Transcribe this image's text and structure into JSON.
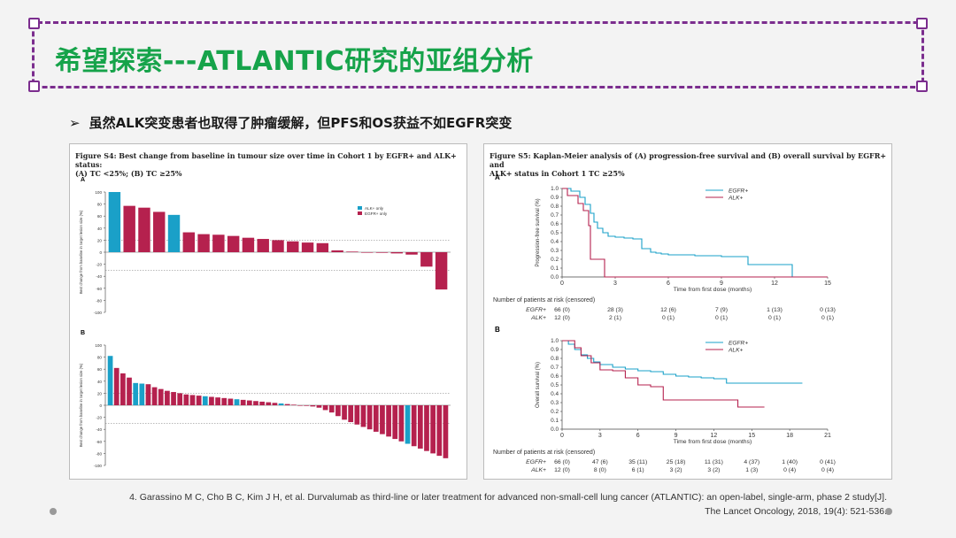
{
  "slide": {
    "title": "希望探索---ATLANTIC研究的亚组分析",
    "bullet_marker": "➢",
    "bullet_text": "虽然ALK突变患者也取得了肿瘤缓解，但PFS和OS获益不如EGFR突变",
    "reference_line1": "4. Garassino M C, Cho B C, Kim J H, et al. Durvalumab as third-line or later treatment for advanced non-small-cell lung cancer (ATLANTIC): an open-label, single-arm, phase 2 study[J].",
    "reference_line2": "The Lancet Oncology, 2018, 19(4): 521-536."
  },
  "colors": {
    "title_green": "#16a34a",
    "frame_purple": "#7b2d8e",
    "egfr": "#b5214e",
    "alk": "#1aa0c8"
  },
  "left_figure": {
    "caption_line1": "Figure S4: Best change from baseline in tumour size over time in Cohort 1 by EGFR+ and ALK+ status:",
    "caption_line2": "(A) TC <25%; (B) TC ≥25%",
    "ylabel": "Best change from baseline in target lesion size (%)"
  },
  "right_figure": {
    "caption_line1": "Figure S5: Kaplan-Meier analysis of (A) progression-free survival and (B) overall survival by EGFR+ and",
    "caption_line2": "ALK+ status in Cohort 1 TC ≥25%",
    "risk_header": "Number of patients at risk (censored)"
  },
  "chart_data": [
    {
      "type": "bar",
      "panel": "A",
      "ylabel": "Best change from baseline in target lesion size (%)",
      "ylim": [
        -100,
        100
      ],
      "yticks": [
        100,
        80,
        60,
        40,
        20,
        0,
        -20,
        -40,
        -60,
        -80,
        -100
      ],
      "reference_lines": [
        20,
        -30
      ],
      "legend": [
        "ALK+ only",
        "EGFR+ only"
      ],
      "legend_position": "top-right",
      "values": [
        100,
        77,
        74,
        67,
        62,
        33,
        30,
        29,
        27,
        24,
        22,
        20,
        18,
        16,
        15,
        3,
        1,
        0,
        -1,
        -2,
        -4,
        -24,
        -62
      ],
      "groups": [
        "ALK",
        "EGFR",
        "EGFR",
        "EGFR",
        "ALK",
        "EGFR",
        "EGFR",
        "EGFR",
        "EGFR",
        "EGFR",
        "EGFR",
        "EGFR",
        "EGFR",
        "EGFR",
        "EGFR",
        "EGFR",
        "EGFR",
        "EGFR",
        "EGFR",
        "EGFR",
        "EGFR",
        "EGFR",
        "EGFR"
      ]
    },
    {
      "type": "bar",
      "panel": "B",
      "ylabel": "Best change from baseline in target lesion size (%)",
      "ylim": [
        -100,
        100
      ],
      "yticks": [
        100,
        80,
        60,
        40,
        20,
        0,
        -20,
        -40,
        -60,
        -80,
        -100
      ],
      "reference_lines": [
        20,
        -30
      ],
      "values": [
        82,
        62,
        53,
        46,
        37,
        36,
        35,
        30,
        27,
        24,
        22,
        20,
        18,
        17,
        16,
        15,
        14,
        13,
        12,
        11,
        10,
        9,
        8,
        7,
        6,
        5,
        4,
        3,
        2,
        1,
        0,
        -1,
        -2,
        -4,
        -8,
        -12,
        -18,
        -24,
        -28,
        -32,
        -36,
        -40,
        -44,
        -48,
        -52,
        -56,
        -60,
        -64,
        -68,
        -72,
        -76,
        -80,
        -84,
        -88
      ],
      "groups": [
        "ALK",
        "EGFR",
        "EGFR",
        "EGFR",
        "ALK",
        "ALK",
        "EGFR",
        "EGFR",
        "EGFR",
        "EGFR",
        "EGFR",
        "EGFR",
        "EGFR",
        "EGFR",
        "EGFR",
        "ALK",
        "EGFR",
        "EGFR",
        "EGFR",
        "EGFR",
        "ALK",
        "EGFR",
        "EGFR",
        "EGFR",
        "EGFR",
        "EGFR",
        "EGFR",
        "ALK",
        "EGFR",
        "EGFR",
        "EGFR",
        "EGFR",
        "EGFR",
        "EGFR",
        "EGFR",
        "EGFR",
        "EGFR",
        "EGFR",
        "EGFR",
        "EGFR",
        "EGFR",
        "EGFR",
        "EGFR",
        "EGFR",
        "EGFR",
        "EGFR",
        "EGFR",
        "ALK",
        "EGFR",
        "EGFR",
        "EGFR",
        "EGFR",
        "EGFR",
        "EGFR"
      ]
    },
    {
      "type": "line",
      "panel": "A",
      "ylabel": "Progression-free survival (%)",
      "xlabel": "Time from first dose (months)",
      "xlim": [
        0,
        15
      ],
      "ylim": [
        0,
        1
      ],
      "xticks": [
        0,
        3,
        6,
        9,
        12,
        15
      ],
      "yticks": [
        1.0,
        0.9,
        0.8,
        0.7,
        0.6,
        0.5,
        0.4,
        0.3,
        0.2,
        0.1,
        0.0
      ],
      "legend_position": "top-right",
      "series": [
        {
          "name": "EGFR+",
          "x": [
            0,
            0.5,
            1,
            1.3,
            1.6,
            1.8,
            2.0,
            2.3,
            2.6,
            3.0,
            3.5,
            4.0,
            4.5,
            5.0,
            5.3,
            5.6,
            6.0,
            7.5,
            9.0,
            10.5,
            13.0,
            13.0,
            15.0
          ],
          "y": [
            1.0,
            0.97,
            0.9,
            0.82,
            0.72,
            0.62,
            0.55,
            0.5,
            0.46,
            0.45,
            0.44,
            0.43,
            0.32,
            0.28,
            0.27,
            0.26,
            0.25,
            0.24,
            0.23,
            0.14,
            0.14,
            0.0,
            0.0
          ]
        },
        {
          "name": "ALK+",
          "x": [
            0,
            0.3,
            0.9,
            1.2,
            1.5,
            1.6,
            2.0,
            2.3,
            2.4,
            3.0,
            15.0
          ],
          "y": [
            1.0,
            0.92,
            0.83,
            0.75,
            0.58,
            0.2,
            0.2,
            0.2,
            0.0,
            0.0,
            0.0
          ]
        }
      ],
      "risk_table": {
        "times": [
          0,
          3,
          6,
          9,
          12,
          15
        ],
        "rows": [
          {
            "label": "EGFR+",
            "values": [
              "66 (0)",
              "28 (3)",
              "12 (6)",
              "7 (9)",
              "1 (13)",
              "0 (13)"
            ]
          },
          {
            "label": "ALK+",
            "values": [
              "12 (0)",
              "2 (1)",
              "0 (1)",
              "0 (1)",
              "0 (1)",
              "0 (1)"
            ]
          }
        ]
      }
    },
    {
      "type": "line",
      "panel": "B",
      "ylabel": "Overall survival (%)",
      "xlabel": "Time from first dose (months)",
      "xlim": [
        0,
        21
      ],
      "ylim": [
        0,
        1
      ],
      "xticks": [
        0,
        3,
        6,
        9,
        12,
        15,
        18,
        21
      ],
      "yticks": [
        1.0,
        0.9,
        0.8,
        0.7,
        0.6,
        0.5,
        0.4,
        0.3,
        0.2,
        0.1,
        0.0
      ],
      "legend_position": "top-right",
      "series": [
        {
          "name": "EGFR+",
          "x": [
            0,
            0.5,
            1,
            1.5,
            2,
            2.5,
            3,
            4,
            5,
            6,
            7,
            8,
            9,
            10,
            11,
            12,
            13,
            14,
            15,
            16,
            17,
            18,
            19
          ],
          "y": [
            1.0,
            0.96,
            0.9,
            0.84,
            0.8,
            0.76,
            0.73,
            0.7,
            0.68,
            0.66,
            0.65,
            0.62,
            0.6,
            0.59,
            0.58,
            0.57,
            0.52,
            0.52,
            0.52,
            0.52,
            0.52,
            0.52,
            0.52
          ]
        },
        {
          "name": "ALK+",
          "x": [
            0,
            1.0,
            1.5,
            2.3,
            3.0,
            4.0,
            5.0,
            6.0,
            7.0,
            8.0,
            9.0,
            10.0,
            11.0,
            12.0,
            13.0,
            13.9,
            14.5,
            16.0
          ],
          "y": [
            1.0,
            0.92,
            0.83,
            0.75,
            0.67,
            0.66,
            0.58,
            0.5,
            0.48,
            0.33,
            0.33,
            0.33,
            0.33,
            0.33,
            0.33,
            0.25,
            0.25,
            0.25
          ]
        }
      ],
      "risk_table": {
        "times": [
          0,
          3,
          6,
          9,
          12,
          15,
          18,
          21
        ],
        "rows": [
          {
            "label": "EGFR+",
            "values": [
              "66 (0)",
              "47 (6)",
              "35 (11)",
              "25 (18)",
              "11 (31)",
              "4 (37)",
              "1 (40)",
              "0 (41)"
            ]
          },
          {
            "label": "ALK+",
            "values": [
              "12 (0)",
              "8 (0)",
              "6 (1)",
              "3 (2)",
              "3 (2)",
              "1 (3)",
              "0 (4)",
              "0 (4)"
            ]
          }
        ]
      }
    }
  ]
}
